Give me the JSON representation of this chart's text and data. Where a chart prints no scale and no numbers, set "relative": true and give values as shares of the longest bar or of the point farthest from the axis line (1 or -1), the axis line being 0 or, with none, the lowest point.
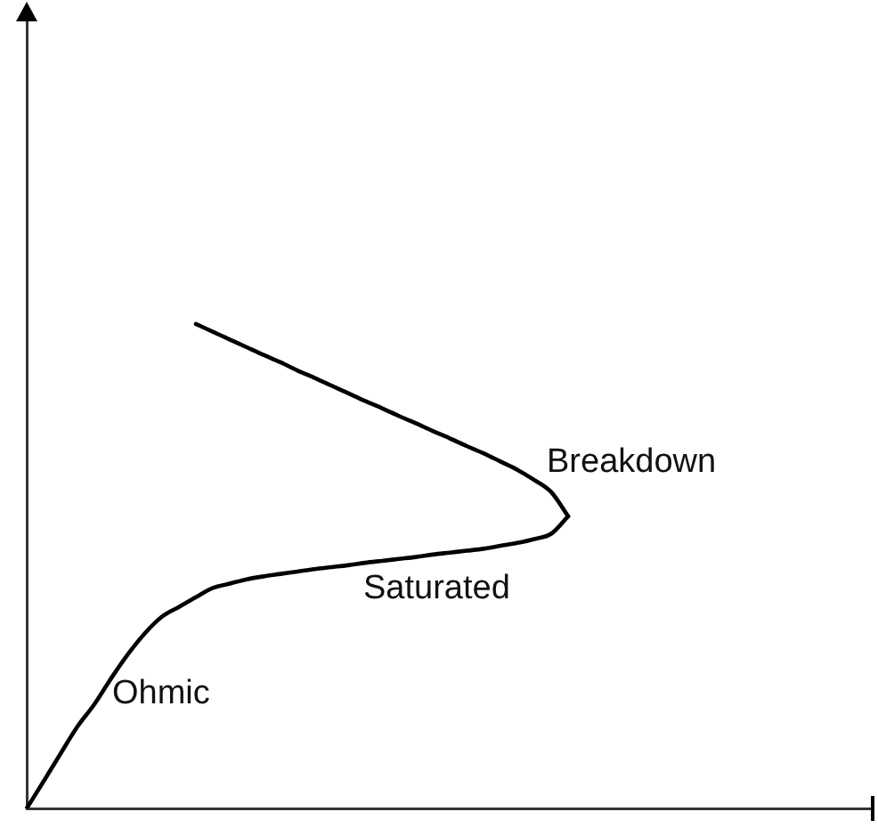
{
  "chart_data": {
    "type": "line",
    "relative": true,
    "categories": [
      null,
      null,
      null,
      null,
      null,
      null,
      null,
      null,
      null,
      null,
      null,
      null,
      null,
      null,
      null,
      null,
      null,
      null,
      null,
      null,
      null,
      null,
      null,
      null,
      null,
      null,
      null,
      null,
      null,
      null,
      null,
      null,
      null,
      null,
      null,
      null,
      null,
      null,
      null,
      null,
      null,
      null,
      null,
      null,
      null,
      null,
      null,
      null,
      null,
      null,
      null
    ],
    "series": [
      {
        "color": "#000000",
        "values": [
          0,
          0.056,
          0.113,
          0.169,
          0.215,
          0.269,
          0.319,
          0.362,
          0.396,
          0.416,
          0.436,
          0.455,
          0.464,
          0.473,
          0.479,
          0.484,
          0.489,
          0.494,
          0.498,
          0.502,
          0.507,
          0.511,
          0.515,
          0.519,
          0.524,
          0.528,
          0.532,
          0.536,
          0.542,
          0.548,
          0.556,
          0.567,
          0.603,
          null,
          null,
          null,
          null,
          null,
          null,
          null,
          null,
          null,
          null,
          null,
          null,
          null,
          null,
          null,
          null,
          null,
          null
        ]
      },
      {
        "color": "#000000",
        "values": [
          null,
          null,
          null,
          null,
          null,
          null,
          null,
          null,
          null,
          null,
          1,
          0.984,
          0.968,
          0.952,
          0.936,
          0.921,
          0.904,
          0.889,
          0.873,
          0.857,
          0.841,
          0.826,
          0.81,
          0.795,
          0.779,
          0.764,
          0.748,
          0.733,
          0.716,
          0.699,
          0.678,
          0.653,
          0.603,
          null,
          null,
          null,
          null,
          null,
          null,
          null,
          null,
          null,
          null,
          null,
          null,
          null,
          null,
          null,
          null,
          null,
          null
        ]
      }
    ],
    "annotations": [
      "Ohmic",
      "Saturated",
      "Breakdown"
    ]
  }
}
